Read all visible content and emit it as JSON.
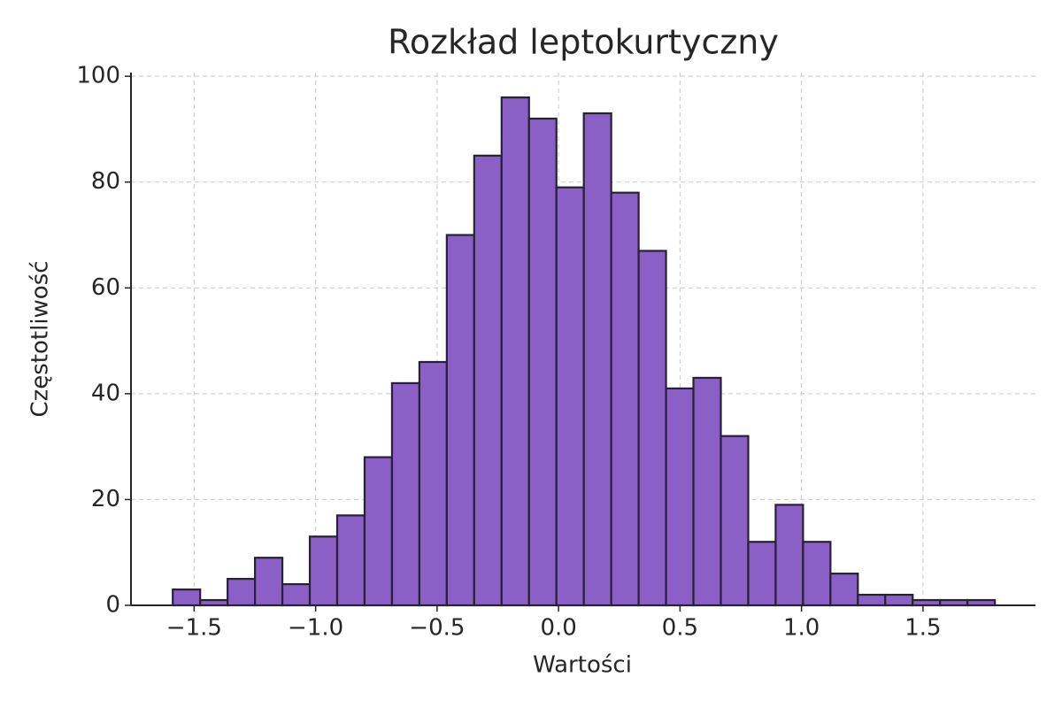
{
  "chart_data": {
    "type": "histogram",
    "title": "Rozkład leptokurtyczny",
    "x_label": "Wartości",
    "y_label": "Częstotliwość",
    "bins": [
      -1.588,
      -1.4752,
      -1.3624,
      -1.2496,
      -1.1368,
      -1.024,
      -0.9112,
      -0.7984,
      -0.6856,
      -0.5728,
      -0.46,
      -0.3472,
      -0.2344,
      -0.1216,
      -0.0088,
      0.104,
      0.2168,
      0.3296,
      0.4424,
      0.5552,
      0.668,
      0.7808,
      0.8936,
      1.0064,
      1.1192,
      1.232,
      1.3448,
      1.4576,
      1.5704,
      1.6832,
      1.796
    ],
    "values": [
      3,
      1,
      5,
      9,
      4,
      13,
      17,
      28,
      42,
      46,
      70,
      85,
      96,
      92,
      79,
      93,
      78,
      67,
      41,
      43,
      32,
      12,
      19,
      12,
      6,
      2,
      2,
      1,
      1,
      1
    ],
    "color": "#8a5fc6",
    "edgecolor": "#2a2035",
    "xlim": [
      -1.76,
      1.963
    ],
    "ylim": [
      0,
      100.7
    ],
    "xticks": [
      {
        "value": -1.5,
        "label": "−1.5"
      },
      {
        "value": -1.0,
        "label": "−1.0"
      },
      {
        "value": -0.5,
        "label": "−0.5"
      },
      {
        "value": 0,
        "label": "0.0"
      },
      {
        "value": 0.5,
        "label": "0.5"
      },
      {
        "value": 1.0,
        "label": "1.0"
      },
      {
        "value": 1.5,
        "label": "1.5"
      }
    ],
    "yticks": [
      0,
      20,
      40,
      60,
      80,
      100
    ],
    "grid": true
  }
}
